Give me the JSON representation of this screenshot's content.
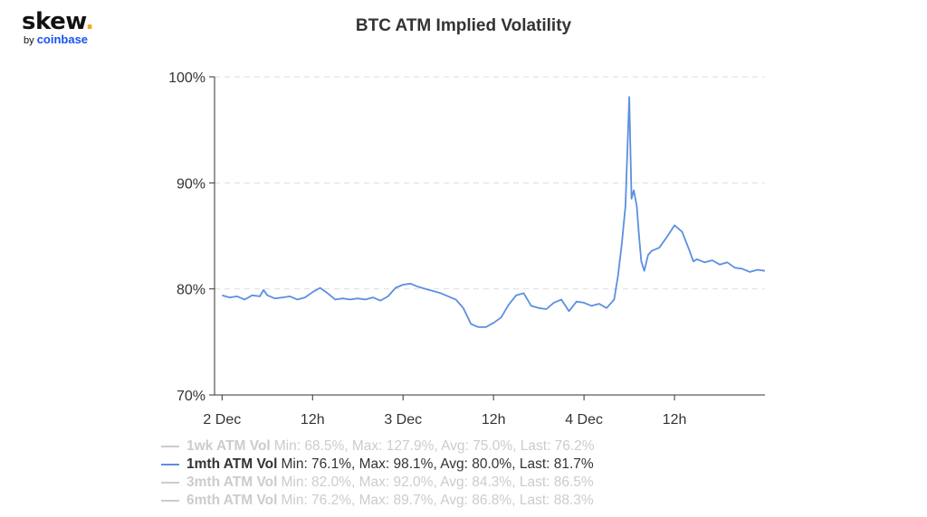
{
  "logo": {
    "main": "skew",
    "dot": ".",
    "by": "by",
    "brand": "coinbase"
  },
  "colors": {
    "series": "#5b8fe0",
    "hidden": "#cccccc",
    "grid": "#dddddd",
    "axis": "#333333",
    "brand": "#1652f0",
    "accent": "#f5a623"
  },
  "chart_data": {
    "type": "line",
    "title": "BTC ATM Implied Volatility",
    "xlabel": "",
    "ylabel": "",
    "ylim": [
      70,
      100
    ],
    "y_ticks": [
      "70%",
      "80%",
      "90%",
      "100%"
    ],
    "x_ticks": [
      "2 Dec",
      "12h",
      "3 Dec",
      "12h",
      "4 Dec",
      "12h"
    ],
    "grid": "horizontal dashed",
    "legend_position": "bottom-left",
    "series": [
      {
        "name": "1mth ATM Vol",
        "visible": true,
        "x": [
          0,
          1,
          2,
          3,
          4,
          5,
          5.5,
          6,
          7,
          8,
          9,
          10,
          11,
          12,
          13,
          14,
          15,
          16,
          17,
          18,
          19,
          20,
          21,
          22,
          23,
          24,
          25,
          26,
          27,
          28,
          29,
          30,
          31,
          32,
          33,
          34,
          35,
          36,
          37,
          38,
          39,
          40,
          41,
          42,
          43,
          44,
          45,
          46,
          47,
          48,
          49,
          50,
          51,
          52,
          52.5,
          53,
          53.5,
          54,
          54.3,
          54.6,
          55,
          55.3,
          55.6,
          56,
          56.5,
          57,
          58,
          59,
          60,
          61,
          62,
          62.5,
          63,
          64,
          65,
          66,
          67,
          68,
          69,
          70,
          71,
          72
        ],
        "y": [
          79.4,
          79.2,
          79.3,
          79.0,
          79.4,
          79.3,
          79.9,
          79.4,
          79.1,
          79.2,
          79.3,
          79.0,
          79.2,
          79.7,
          80.1,
          79.6,
          79.0,
          79.1,
          79.0,
          79.1,
          79.0,
          79.2,
          78.9,
          79.3,
          80.1,
          80.4,
          80.5,
          80.2,
          80.0,
          79.8,
          79.6,
          79.3,
          79.0,
          78.2,
          76.7,
          76.4,
          76.4,
          76.8,
          77.3,
          78.5,
          79.4,
          79.6,
          78.4,
          78.2,
          78.1,
          78.7,
          79.0,
          77.9,
          78.8,
          78.7,
          78.4,
          78.6,
          78.2,
          79.0,
          81.2,
          84.2,
          87.8,
          98.1,
          88.5,
          89.3,
          87.8,
          85.0,
          82.6,
          81.7,
          83.2,
          83.6,
          83.9,
          84.9,
          86.0,
          85.4,
          83.6,
          82.6,
          82.8,
          82.5,
          82.7,
          82.3,
          82.5,
          82.0,
          81.9,
          81.6,
          81.8,
          81.7
        ]
      }
    ]
  },
  "legend": [
    {
      "name": "1wk ATM Vol",
      "stats": "Min: 68.5%, Max: 127.9%, Avg: 75.0%, Last: 76.2%",
      "visible": false
    },
    {
      "name": "1mth ATM Vol",
      "stats": "Min: 76.1%, Max: 98.1%, Avg: 80.0%, Last: 81.7%",
      "visible": true
    },
    {
      "name": "3mth ATM Vol",
      "stats": "Min: 82.0%, Max: 92.0%, Avg: 84.3%, Last: 86.5%",
      "visible": false
    },
    {
      "name": "6mth ATM Vol",
      "stats": "Min: 76.2%, Max: 89.7%, Avg: 86.8%, Last: 88.3%",
      "visible": false
    }
  ]
}
